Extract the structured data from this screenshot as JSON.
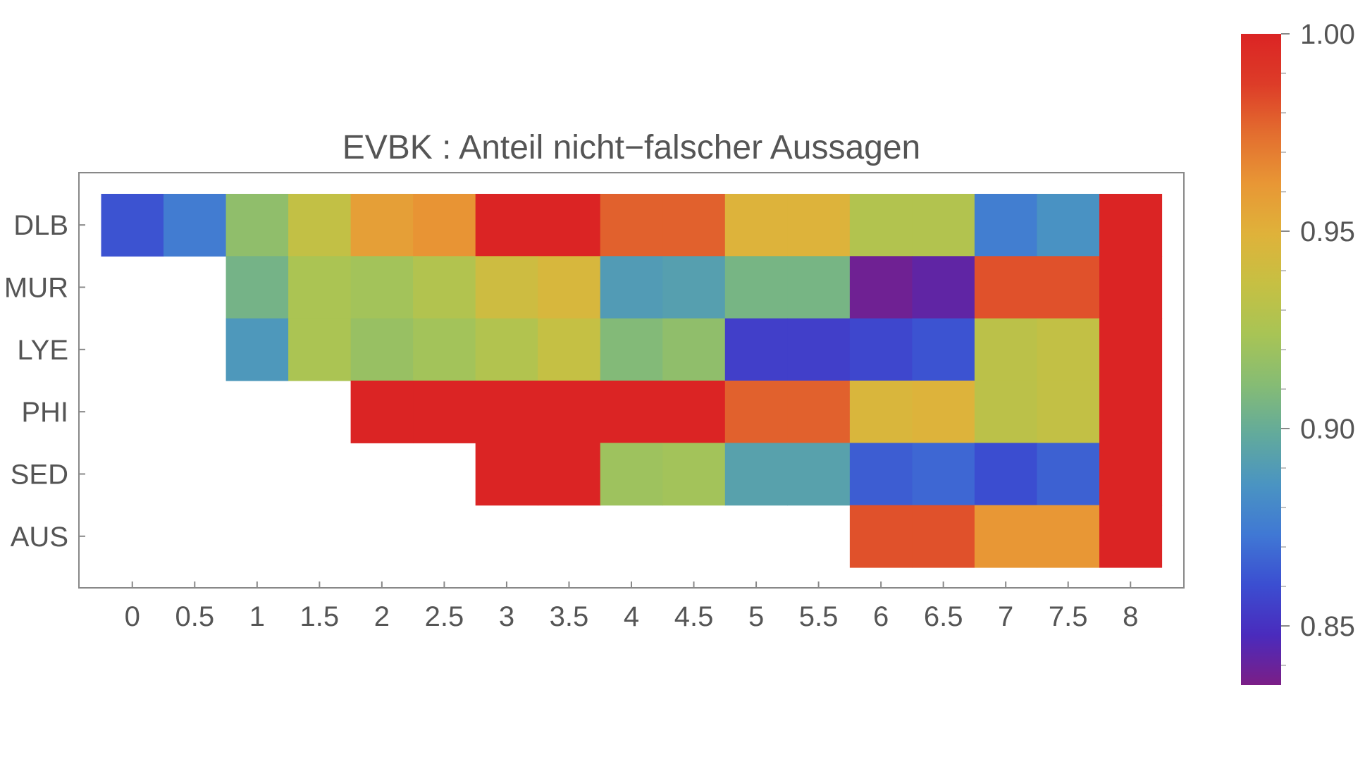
{
  "chart_data": {
    "type": "heatmap",
    "title": "EVBK : Anteil nicht−falscher Aussagen",
    "xlabel": "",
    "ylabel": "",
    "x_ticks": [
      "0",
      "0.5",
      "1",
      "1.5",
      "2",
      "2.5",
      "3",
      "3.5",
      "4",
      "4.5",
      "5",
      "5.5",
      "6",
      "6.5",
      "7",
      "7.5",
      "8"
    ],
    "rows": [
      "DLB",
      "MUR",
      "LYE",
      "PHI",
      "SED",
      "AUS"
    ],
    "values": [
      [
        0.862,
        0.875,
        0.915,
        0.935,
        0.958,
        0.963,
        1.0,
        1.0,
        0.978,
        0.978,
        0.948,
        0.948,
        0.928,
        0.928,
        0.876,
        0.885,
        1.0
      ],
      [
        null,
        null,
        0.905,
        0.925,
        0.922,
        0.928,
        0.94,
        0.945,
        0.89,
        0.892,
        0.906,
        0.906,
        0.838,
        0.842,
        0.982,
        0.982,
        1.0
      ],
      [
        null,
        null,
        0.888,
        0.925,
        0.918,
        0.922,
        0.928,
        0.936,
        0.91,
        0.915,
        0.855,
        0.855,
        0.858,
        0.862,
        0.932,
        0.935,
        1.0
      ],
      [
        null,
        null,
        null,
        null,
        1.0,
        1.0,
        1.0,
        1.0,
        1.0,
        1.0,
        0.978,
        0.978,
        0.946,
        0.948,
        0.932,
        0.935,
        1.0
      ],
      [
        null,
        null,
        null,
        null,
        null,
        null,
        1.0,
        1.0,
        0.92,
        0.922,
        0.893,
        0.893,
        0.865,
        0.868,
        0.86,
        0.866,
        1.0
      ],
      [
        null,
        null,
        null,
        null,
        null,
        null,
        null,
        null,
        null,
        null,
        null,
        null,
        0.982,
        0.982,
        0.962,
        0.962,
        1.0
      ]
    ],
    "colorbar": {
      "min": 0.835,
      "max": 1.0,
      "ticks": [
        "1.00",
        "0.95",
        "0.90",
        "0.85"
      ],
      "tick_values": [
        1.0,
        0.95,
        0.9,
        0.85
      ]
    },
    "colormap": [
      "#7b1e86",
      "#4a2bbd",
      "#3b4ed1",
      "#4078d4",
      "#4a94c2",
      "#62aa9c",
      "#86bc74",
      "#a8c455",
      "#c6c043",
      "#dfb23a",
      "#e89735",
      "#e36e2f",
      "#dd3c28",
      "#db2424"
    ],
    "grid": false,
    "legend": "right"
  }
}
